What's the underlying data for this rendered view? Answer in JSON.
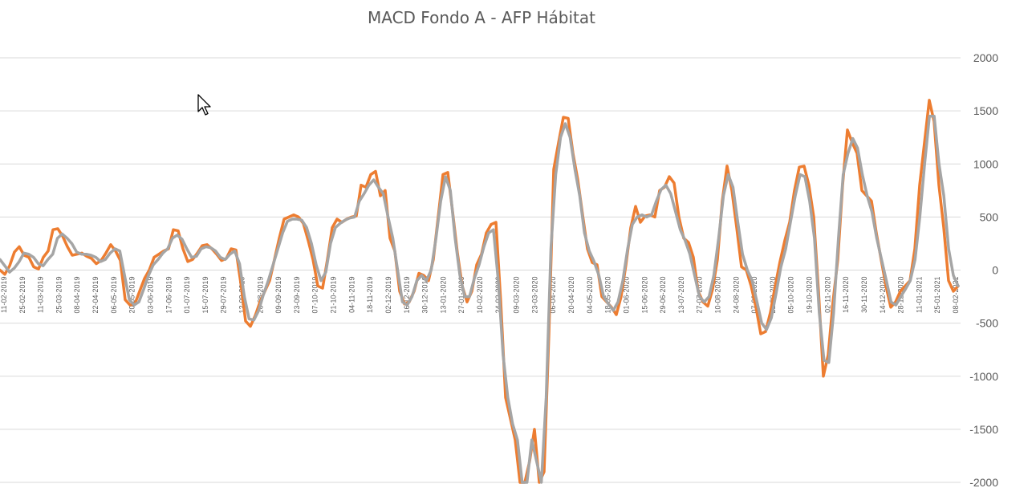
{
  "chart_data": {
    "type": "line",
    "title": "MACD Fondo A - AFP Hábitat",
    "ylim": [
      -2000,
      2000
    ],
    "y_ticks": [
      2000,
      1500,
      1000,
      500,
      0,
      -500,
      -1000,
      -1500,
      -2000
    ],
    "grid": true,
    "legend": "none",
    "x_tick_labels": [
      "11-02-2019",
      "25-02-2019",
      "11-03-2019",
      "25-03-2019",
      "08-04-2019",
      "22-04-2019",
      "06-05-2019",
      "20-05-2019",
      "03-06-2019",
      "17-06-2019",
      "01-07-2019",
      "15-07-2019",
      "29-07-2019",
      "12-08-2019",
      "26-08-2019",
      "09-09-2019",
      "23-09-2019",
      "07-10-2019",
      "21-10-2019",
      "04-11-2019",
      "18-11-2019",
      "02-12-2019",
      "16-12-2019",
      "30-12-2019",
      "13-01-2020",
      "27-01-2020",
      "10-02-2020",
      "24-02-2020",
      "09-03-2020",
      "23-03-2020",
      "06-04-2020",
      "20-04-2020",
      "04-05-2020",
      "18-05-2020",
      "01-06-2020",
      "15-06-2020",
      "29-06-2020",
      "13-07-2020",
      "27-07-2020",
      "10-08-2020",
      "24-08-2020",
      "07-09-2020",
      "21-09-2020",
      "05-10-2020",
      "19-10-2020",
      "02-11-2020",
      "16-11-2020",
      "30-11-2020",
      "14-12-2020",
      "28-12-2020",
      "11-01-2021",
      "25-01-2021",
      "08-02-2021"
    ],
    "series": [
      {
        "color": "#ED7D31",
        "values": [
          0,
          -40,
          40,
          170,
          220,
          140,
          120,
          30,
          10,
          120,
          180,
          380,
          390,
          320,
          220,
          140,
          150,
          160,
          130,
          110,
          60,
          90,
          160,
          240,
          180,
          90,
          -280,
          -330,
          -320,
          -200,
          -80,
          0,
          120,
          150,
          180,
          200,
          380,
          370,
          200,
          80,
          100,
          160,
          230,
          240,
          200,
          150,
          90,
          110,
          200,
          190,
          -120,
          -480,
          -530,
          -430,
          -300,
          -200,
          -100,
          100,
          300,
          480,
          500,
          520,
          500,
          440,
          280,
          100,
          -150,
          -170,
          100,
          400,
          480,
          450,
          480,
          500,
          510,
          800,
          780,
          900,
          930,
          700,
          750,
          300,
          180,
          -200,
          -320,
          -300,
          -200,
          -30,
          -50,
          -100,
          100,
          500,
          900,
          920,
          550,
          160,
          -150,
          -300,
          -200,
          50,
          150,
          350,
          430,
          450,
          -300,
          -1200,
          -1400,
          -1600,
          -2000,
          -2000,
          -1800,
          -1500,
          -2000,
          -1900,
          -600,
          950,
          1200,
          1440,
          1430,
          1100,
          850,
          520,
          200,
          70,
          50,
          -250,
          -300,
          -350,
          -420,
          -250,
          50,
          400,
          600,
          450,
          510,
          520,
          500,
          750,
          780,
          880,
          820,
          500,
          300,
          260,
          120,
          -200,
          -300,
          -340,
          -180,
          100,
          650,
          980,
          750,
          400,
          30,
          0,
          -150,
          -350,
          -600,
          -580,
          -400,
          -150,
          80,
          280,
          450,
          750,
          970,
          980,
          800,
          500,
          -200,
          -1000,
          -800,
          -300,
          100,
          800,
          1320,
          1200,
          1100,
          750,
          700,
          650,
          350,
          100,
          -150,
          -350,
          -300,
          -200,
          -150,
          -100,
          200,
          800,
          1200,
          1600,
          1400,
          800,
          400,
          -100,
          -200,
          -150
        ]
      },
      {
        "color": "#A5A5A5",
        "values": [
          100,
          40,
          -20,
          20,
          80,
          160,
          150,
          120,
          60,
          40,
          100,
          150,
          300,
          340,
          300,
          250,
          170,
          150,
          150,
          140,
          120,
          80,
          100,
          160,
          200,
          180,
          -50,
          -280,
          -330,
          -300,
          -180,
          -50,
          50,
          100,
          160,
          200,
          300,
          330,
          290,
          200,
          120,
          130,
          200,
          220,
          210,
          180,
          120,
          100,
          150,
          180,
          60,
          -250,
          -460,
          -470,
          -380,
          -230,
          -100,
          50,
          200,
          350,
          460,
          480,
          480,
          470,
          400,
          250,
          50,
          -100,
          -20,
          250,
          400,
          440,
          470,
          490,
          500,
          650,
          720,
          800,
          850,
          780,
          720,
          500,
          300,
          0,
          -300,
          -330,
          -250,
          -100,
          -50,
          -100,
          0,
          300,
          650,
          880,
          750,
          300,
          -50,
          -250,
          -250,
          -80,
          50,
          220,
          350,
          380,
          -100,
          -800,
          -1200,
          -1450,
          -1600,
          -2000,
          -2000,
          -1600,
          -1800,
          -2000,
          -1200,
          200,
          900,
          1250,
          1380,
          1250,
          950,
          700,
          350,
          180,
          80,
          -50,
          -250,
          -320,
          -380,
          -300,
          -100,
          200,
          430,
          500,
          520,
          500,
          520,
          650,
          760,
          800,
          720,
          550,
          380,
          280,
          150,
          -50,
          -250,
          -300,
          -250,
          -50,
          300,
          700,
          900,
          780,
          450,
          150,
          0,
          -100,
          -300,
          -500,
          -560,
          -450,
          -220,
          30,
          200,
          450,
          700,
          900,
          880,
          650,
          300,
          -400,
          -850,
          -870,
          -400,
          300,
          900,
          1100,
          1240,
          1150,
          900,
          700,
          550,
          300,
          100,
          -100,
          -300,
          -330,
          -250,
          -180,
          -100,
          100,
          500,
          1000,
          1450,
          1450,
          1000,
          700,
          200,
          -50,
          -150
        ]
      }
    ]
  }
}
